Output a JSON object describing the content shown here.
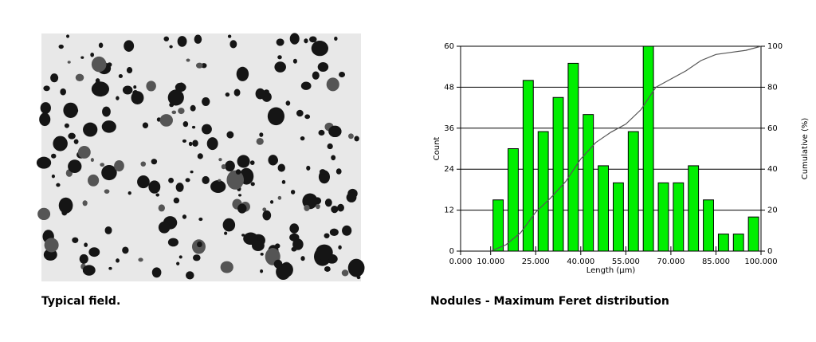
{
  "image_caption": "Typical field.",
  "chart_caption": "Nodules - Maximum Feret distribution",
  "chart_data": {
    "type": "histogram",
    "bins": [
      10,
      15,
      20,
      25,
      30,
      35,
      40,
      45,
      50,
      55,
      60,
      65,
      70,
      75,
      80,
      85,
      90,
      95,
      100
    ],
    "values": [
      15,
      30,
      50,
      35,
      45,
      55,
      40,
      25,
      20,
      35,
      60,
      20,
      20,
      25,
      15,
      5,
      5,
      10
    ],
    "color": "#00ee00",
    "lines": [
      {
        "axis": "y2",
        "color": "#555555",
        "values": [
          0,
          3,
          9,
          19,
          26,
          34,
          45,
          53,
          58,
          62,
          69,
          80,
          84,
          88,
          93,
          96,
          97,
          98,
          100
        ]
      }
    ],
    "xlabel": "Length (µm)",
    "ylabel": "Count",
    "y2label": "Cumulative (%)",
    "xlim": [
      0,
      100
    ],
    "xticks": [
      {
        "value": 0,
        "label": "0.000"
      },
      {
        "value": 10,
        "label": "10.000"
      },
      {
        "value": 25,
        "label": "25.000"
      },
      {
        "value": 40,
        "label": "40.000"
      },
      {
        "value": 55,
        "label": "55.000"
      },
      {
        "value": 70,
        "label": "70.000"
      },
      {
        "value": 85,
        "label": "85.000"
      },
      {
        "value": 100,
        "label": "100.000"
      }
    ],
    "ylim": [
      0,
      60
    ],
    "yticks": [
      0,
      12,
      24,
      36,
      48,
      60
    ],
    "y2lim": [
      0,
      100
    ],
    "y2ticks": [
      0,
      20,
      40,
      60,
      80,
      100
    ],
    "grid": true
  }
}
